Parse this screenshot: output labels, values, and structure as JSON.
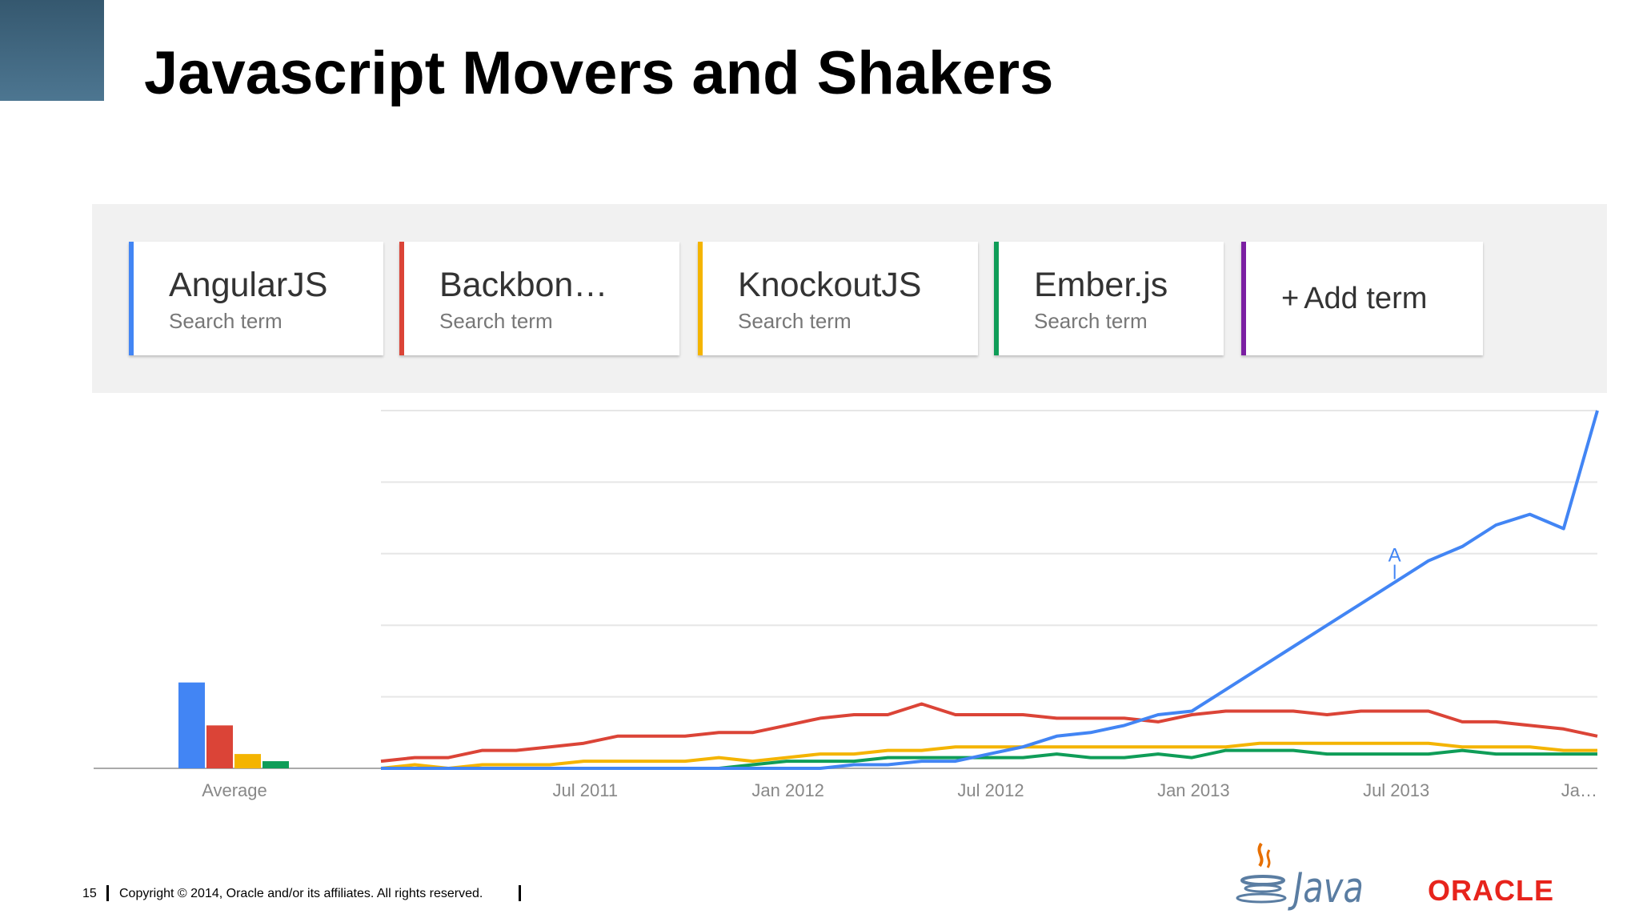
{
  "slide": {
    "title": "Javascript Movers and Shakers",
    "page_number": "15",
    "copyright": "Copyright © 2014, Oracle and/or its affiliates. All rights reserved.",
    "logos": {
      "java": "Java",
      "oracle": "ORACLE"
    }
  },
  "terms": [
    {
      "name": "AngularJS",
      "sub": "Search term",
      "color": "#4285f4"
    },
    {
      "name": "Backbon…",
      "sub": "Search term",
      "color": "#db4437"
    },
    {
      "name": "KnockoutJS",
      "sub": "Search term",
      "color": "#f4b400"
    },
    {
      "name": "Ember.js",
      "sub": "Search term",
      "color": "#0f9d58"
    }
  ],
  "add_term": {
    "label": "Add term",
    "plus": "+",
    "color": "#7b1fa2"
  },
  "chart_data": {
    "type": "line",
    "x_tick_labels": [
      "Jul 2011",
      "Jan 2012",
      "Jul 2012",
      "Jan 2013",
      "Jul 2013",
      "Ja…"
    ],
    "x_start": "2011-01",
    "x_end": "2014-01",
    "ylim": [
      0,
      100
    ],
    "grid": true,
    "average": {
      "label": "Average",
      "values": [
        24,
        12,
        4,
        2
      ]
    },
    "annotation": {
      "label": "A",
      "x": "2013-07"
    },
    "series": [
      {
        "name": "AngularJS",
        "color": "#4285f4",
        "values": [
          0,
          0,
          0,
          0,
          0,
          0,
          0,
          0,
          0,
          0,
          0,
          0,
          0,
          0,
          1,
          1,
          2,
          2,
          4,
          6,
          9,
          10,
          12,
          15,
          16,
          22,
          28,
          34,
          40,
          46,
          52,
          58,
          62,
          68,
          71,
          67,
          100
        ]
      },
      {
        "name": "Backbon…",
        "color": "#db4437",
        "values": [
          2,
          3,
          3,
          5,
          5,
          6,
          7,
          9,
          9,
          9,
          10,
          10,
          12,
          14,
          15,
          15,
          18,
          15,
          15,
          15,
          14,
          14,
          14,
          13,
          15,
          16,
          16,
          16,
          15,
          16,
          16,
          16,
          13,
          13,
          12,
          11,
          9
        ]
      },
      {
        "name": "KnockoutJS",
        "color": "#f4b400",
        "values": [
          0,
          1,
          0,
          1,
          1,
          1,
          2,
          2,
          2,
          2,
          3,
          2,
          3,
          4,
          4,
          5,
          5,
          6,
          6,
          6,
          6,
          6,
          6,
          6,
          6,
          6,
          7,
          7,
          7,
          7,
          7,
          7,
          6,
          6,
          6,
          5,
          5
        ]
      },
      {
        "name": "Ember.js",
        "color": "#0f9d58",
        "values": [
          0,
          0,
          0,
          0,
          0,
          0,
          0,
          0,
          0,
          0,
          0,
          1,
          2,
          2,
          2,
          3,
          3,
          3,
          3,
          3,
          4,
          3,
          3,
          4,
          3,
          5,
          5,
          5,
          4,
          4,
          4,
          4,
          5,
          4,
          4,
          4,
          4
        ]
      }
    ]
  }
}
